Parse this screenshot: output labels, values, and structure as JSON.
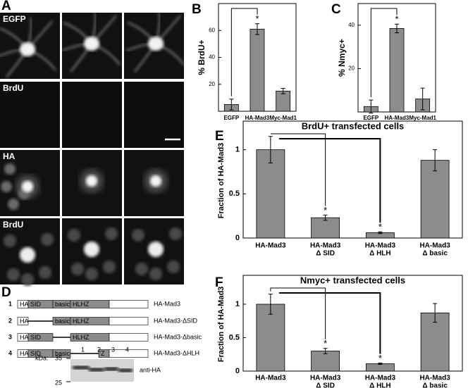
{
  "panel_a": {
    "panel_label": "A",
    "rows": [
      "EGFP",
      "BrdU",
      "HA",
      "BrdU"
    ]
  },
  "panel_d": {
    "panel_label": "D",
    "constructs": [
      {
        "number": "1",
        "name": "HA-Mad3"
      },
      {
        "number": "2",
        "name": "HA-Mad3-ΔSID"
      },
      {
        "number": "3",
        "name": "HA-Mad3-Δbasic"
      },
      {
        "number": "4",
        "name": "HA-Mad3-ΔHLH"
      }
    ],
    "domains": {
      "ha": "HA",
      "sid": "SID",
      "basic": "basic",
      "hlhz": "HLHZ",
      "z": "Z"
    },
    "blot": {
      "unit": "kDa:",
      "markers": [
        "35",
        "25"
      ],
      "lanes": [
        "1",
        "2",
        "3",
        "4"
      ],
      "antibody": "anti-HA"
    }
  },
  "chart_data": [
    {
      "type": "bar",
      "panel_label": "B",
      "ylabel": "% BrdU+",
      "categories": [
        "EGFP",
        "HA-Mad3",
        "Myc-Mad1"
      ],
      "values": [
        5,
        61,
        15
      ],
      "errors": [
        4,
        4,
        2
      ],
      "markers": [
        null,
        "*",
        null
      ],
      "ylim": [
        0,
        80
      ],
      "yticks": [
        20,
        40,
        60
      ],
      "color": "#8c8c8c"
    },
    {
      "type": "bar",
      "panel_label": "C",
      "ylabel": "% Nmyc+",
      "categories": [
        "EGFP",
        "HA-Mad3",
        "Myc-Mad1"
      ],
      "values": [
        2.5,
        38.5,
        6
      ],
      "errors": [
        3,
        2,
        5
      ],
      "markers": [
        null,
        "*",
        null
      ],
      "ylim": [
        0,
        50
      ],
      "yticks": [
        20,
        40
      ],
      "color": "#8c8c8c"
    },
    {
      "type": "bar",
      "panel_label": "E",
      "title": "BrdU+ transfected cells",
      "ylabel": "Fraction of HA-Mad3",
      "categories": [
        [
          "HA-Mad3"
        ],
        [
          "HA-Mad3",
          "Δ SID"
        ],
        [
          "HA-Mad3",
          "Δ HLH"
        ],
        [
          "HA-Mad3",
          "Δ basic"
        ]
      ],
      "values": [
        1.0,
        0.23,
        0.06,
        0.88
      ],
      "errors": [
        0.15,
        0.03,
        0.01,
        0.12
      ],
      "markers": [
        null,
        "*",
        "*",
        null
      ],
      "ylim": [
        0,
        1.3
      ],
      "yticks": [
        0,
        0.5,
        1
      ],
      "color": "#8c8c8c"
    },
    {
      "type": "bar",
      "panel_label": "F",
      "title": "Nmyc+ transfected cells",
      "ylabel": "Fraction of HA-Mad3",
      "categories": [
        [
          "HA-Mad3"
        ],
        [
          "HA-Mad3",
          "Δ SID"
        ],
        [
          "HA-Mad3",
          "Δ HLH"
        ],
        [
          "HA-Mad3",
          "Δ basic"
        ]
      ],
      "values": [
        1.0,
        0.3,
        0.11,
        0.87
      ],
      "errors": [
        0.15,
        0.04,
        0.01,
        0.14
      ],
      "markers": [
        null,
        "*",
        "*",
        null
      ],
      "ylim": [
        0,
        1.4
      ],
      "yticks": [
        0,
        0.5,
        1
      ],
      "color": "#8c8c8c"
    }
  ]
}
